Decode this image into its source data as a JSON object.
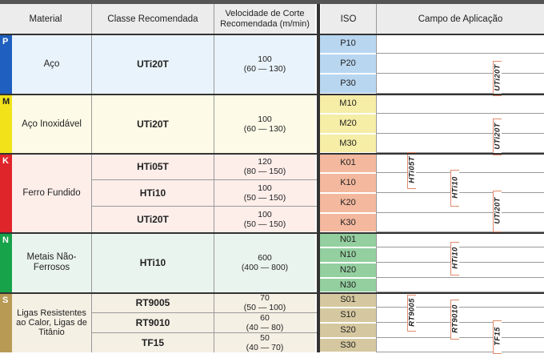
{
  "header": {
    "material": "Material",
    "classe": "Classe Recomendada",
    "velocidade": "Velocidade de Corte Recomendada (m/min)",
    "iso": "ISO",
    "campo": "Campo de Aplicação"
  },
  "groups": [
    {
      "letter": "P",
      "color": "#1e5fbf",
      "material": "Aço"
    },
    {
      "letter": "M",
      "color": "#f2e21a",
      "material": "Aço Inoxidável"
    },
    {
      "letter": "K",
      "color": "#e0252a",
      "material": "Ferro Fundido"
    },
    {
      "letter": "N",
      "color": "#17a34a",
      "material": "Metais Não-Ferrosos"
    },
    {
      "letter": "S",
      "color": "#b89a55",
      "material": "Ligas Resistentes ao Calor, Ligas de Titânio"
    }
  ],
  "grades": [
    {
      "name": "UTi20T",
      "speed": "100",
      "range": "(60 — 130)"
    },
    {
      "name": "UTi20T",
      "speed": "100",
      "range": "(60 — 130)"
    },
    {
      "name": "HTi05T",
      "speed": "120",
      "range": "(80 — 150)"
    },
    {
      "name": "HTi10",
      "speed": "100",
      "range": "(50 — 150)"
    },
    {
      "name": "UTi20T",
      "speed": "100",
      "range": "(50 — 150)"
    },
    {
      "name": "HTi10",
      "speed": "600",
      "range": "(400 — 800)"
    },
    {
      "name": "RT9005",
      "speed": "70",
      "range": "(50 — 100)"
    },
    {
      "name": "RT9010",
      "speed": "60",
      "range": "(40 — 80)"
    },
    {
      "name": "TF15",
      "speed": "50",
      "range": "(40 — 70)"
    }
  ],
  "iso_codes": [
    "P10",
    "P20",
    "P30",
    "M10",
    "M20",
    "M30",
    "K01",
    "K10",
    "K20",
    "K30",
    "N01",
    "N10",
    "N20",
    "N30",
    "S01",
    "S10",
    "S20",
    "S30"
  ],
  "application_tags": [
    "UTi20T",
    "UTi20T",
    "HTi05T",
    "HTi10",
    "UTi20T",
    "HTi10",
    "RT9005",
    "RT9010",
    "TF15"
  ]
}
